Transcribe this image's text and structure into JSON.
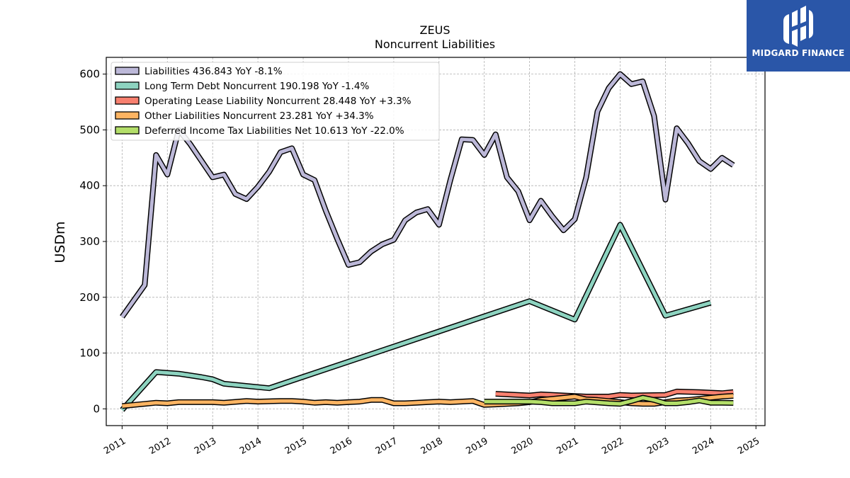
{
  "chart_data": {
    "type": "line",
    "title": "ZEUS",
    "subtitle": "Noncurrent  Liabilities",
    "ylabel": "USDm",
    "xlabel": "",
    "xlim": [
      2010.65,
      2025.2
    ],
    "ylim": [
      -30,
      630
    ],
    "yticks": [
      0,
      100,
      200,
      300,
      400,
      500,
      600
    ],
    "xticks": [
      2011,
      2012,
      2013,
      2014,
      2015,
      2016,
      2017,
      2018,
      2019,
      2020,
      2021,
      2022,
      2023,
      2024,
      2025
    ],
    "grid": true,
    "legend_position": "top-left",
    "series": [
      {
        "name": "Liabilities",
        "legend_label": "Liabilities  436.843 YoY -8.1%",
        "color": "#bcb8d8",
        "points": [
          [
            2011.0,
            165
          ],
          [
            2011.5,
            222
          ],
          [
            2011.75,
            455
          ],
          [
            2012.0,
            420
          ],
          [
            2012.25,
            500
          ],
          [
            2012.5,
            475
          ],
          [
            2012.75,
            445
          ],
          [
            2013.0,
            415
          ],
          [
            2013.25,
            420
          ],
          [
            2013.5,
            385
          ],
          [
            2013.75,
            376
          ],
          [
            2014.0,
            398
          ],
          [
            2014.25,
            425
          ],
          [
            2014.5,
            460
          ],
          [
            2014.75,
            467
          ],
          [
            2015.0,
            420
          ],
          [
            2015.25,
            410
          ],
          [
            2015.5,
            355
          ],
          [
            2015.75,
            305
          ],
          [
            2016.0,
            258
          ],
          [
            2016.25,
            263
          ],
          [
            2016.5,
            282
          ],
          [
            2016.75,
            295
          ],
          [
            2017.0,
            303
          ],
          [
            2017.25,
            338
          ],
          [
            2017.5,
            352
          ],
          [
            2017.75,
            358
          ],
          [
            2018.0,
            330
          ],
          [
            2018.25,
            410
          ],
          [
            2018.5,
            483
          ],
          [
            2018.75,
            482
          ],
          [
            2019.0,
            455
          ],
          [
            2019.25,
            492
          ],
          [
            2019.5,
            415
          ],
          [
            2019.75,
            390
          ],
          [
            2020.0,
            338
          ],
          [
            2020.25,
            373
          ],
          [
            2020.5,
            345
          ],
          [
            2020.75,
            320
          ],
          [
            2021.0,
            340
          ],
          [
            2021.25,
            415
          ],
          [
            2021.5,
            533
          ],
          [
            2021.75,
            575
          ],
          [
            2022.0,
            600
          ],
          [
            2022.25,
            582
          ],
          [
            2022.5,
            587
          ],
          [
            2022.75,
            525
          ],
          [
            2023.0,
            375
          ],
          [
            2023.25,
            503
          ],
          [
            2023.5,
            476
          ],
          [
            2023.75,
            444
          ],
          [
            2024.0,
            430
          ],
          [
            2024.25,
            450
          ],
          [
            2024.5,
            436.843
          ]
        ]
      },
      {
        "name": "Long Term Debt Noncurrent",
        "legend_label": "Long Term Debt Noncurrent  190.198 YoY -1.4%",
        "color": "#8dd3c0",
        "points": [
          [
            2011.0,
            -2
          ],
          [
            2011.75,
            66
          ],
          [
            2012.25,
            63
          ],
          [
            2012.75,
            57
          ],
          [
            2013.0,
            53
          ],
          [
            2013.25,
            45
          ],
          [
            2014.25,
            37
          ],
          [
            2020.0,
            193
          ],
          [
            2021.0,
            160
          ],
          [
            2022.0,
            330
          ],
          [
            2023.0,
            167
          ],
          [
            2024.0,
            190.198
          ]
        ]
      },
      {
        "name": "Operating Lease Liability Noncurrent",
        "legend_label": "Operating Lease Liability Noncurrent  28.448 YoY +3.3%",
        "color": "#f8806f",
        "points": [
          [
            2019.25,
            27
          ],
          [
            2019.75,
            25
          ],
          [
            2020.0,
            24
          ],
          [
            2020.25,
            26
          ],
          [
            2020.75,
            24
          ],
          [
            2021.25,
            22
          ],
          [
            2021.75,
            22
          ],
          [
            2022.0,
            25
          ],
          [
            2022.25,
            24
          ],
          [
            2023.0,
            25
          ],
          [
            2023.25,
            31
          ],
          [
            2023.75,
            30
          ],
          [
            2024.0,
            29
          ],
          [
            2024.25,
            28
          ],
          [
            2024.5,
            30
          ]
        ]
      },
      {
        "name": "Other Liabilities Noncurrent",
        "legend_label": "Other Liabilities Noncurrent  23.281 YoY +34.3%",
        "color": "#fdb462",
        "points": [
          [
            2011.0,
            5
          ],
          [
            2011.5,
            9
          ],
          [
            2011.75,
            11
          ],
          [
            2012.0,
            10
          ],
          [
            2012.25,
            12
          ],
          [
            2012.75,
            12
          ],
          [
            2013.0,
            12
          ],
          [
            2013.25,
            11
          ],
          [
            2013.75,
            14
          ],
          [
            2014.0,
            13
          ],
          [
            2014.5,
            14
          ],
          [
            2014.75,
            14
          ],
          [
            2015.0,
            13
          ],
          [
            2015.25,
            11
          ],
          [
            2015.5,
            12
          ],
          [
            2015.75,
            11
          ],
          [
            2016.0,
            12
          ],
          [
            2016.25,
            13
          ],
          [
            2016.5,
            16
          ],
          [
            2016.75,
            16
          ],
          [
            2017.0,
            10
          ],
          [
            2017.25,
            10
          ],
          [
            2017.5,
            11
          ],
          [
            2017.75,
            12
          ],
          [
            2018.0,
            13
          ],
          [
            2018.25,
            12
          ],
          [
            2018.75,
            14
          ],
          [
            2019.0,
            7
          ],
          [
            2019.25,
            8
          ],
          [
            2019.75,
            10
          ],
          [
            2020.0,
            12
          ],
          [
            2020.25,
            16
          ],
          [
            2020.5,
            18
          ],
          [
            2020.75,
            20
          ],
          [
            2021.0,
            22
          ],
          [
            2021.25,
            17
          ],
          [
            2021.5,
            16
          ],
          [
            2021.75,
            14
          ],
          [
            2022.0,
            12
          ],
          [
            2022.25,
            10
          ],
          [
            2022.5,
            9
          ],
          [
            2022.75,
            9
          ],
          [
            2023.0,
            12
          ],
          [
            2023.25,
            15
          ],
          [
            2023.5,
            16
          ],
          [
            2023.75,
            18
          ],
          [
            2024.0,
            20
          ],
          [
            2024.25,
            22
          ],
          [
            2024.5,
            23.281
          ]
        ]
      },
      {
        "name": "Deferred Income Tax Liabilities Net",
        "legend_label": "Deferred Income Tax Liabilities Net  10.613 YoY -22.0%",
        "color": "#b3de69",
        "points": [
          [
            2019.0,
            13
          ],
          [
            2019.5,
            13
          ],
          [
            2020.0,
            13
          ],
          [
            2020.25,
            12
          ],
          [
            2020.5,
            10
          ],
          [
            2021.0,
            10
          ],
          [
            2021.25,
            13
          ],
          [
            2021.75,
            10
          ],
          [
            2022.0,
            9
          ],
          [
            2022.25,
            14
          ],
          [
            2022.5,
            20
          ],
          [
            2022.75,
            16
          ],
          [
            2023.0,
            10
          ],
          [
            2023.25,
            10
          ],
          [
            2023.5,
            12
          ],
          [
            2023.75,
            15
          ],
          [
            2024.0,
            11
          ],
          [
            2024.25,
            11
          ],
          [
            2024.5,
            10.613
          ]
        ]
      }
    ]
  },
  "branding": {
    "logo_text": "MIDGARD FINANCE",
    "logo_icon": "midgard-logo-icon",
    "logo_bg": "#2a56a8"
  }
}
